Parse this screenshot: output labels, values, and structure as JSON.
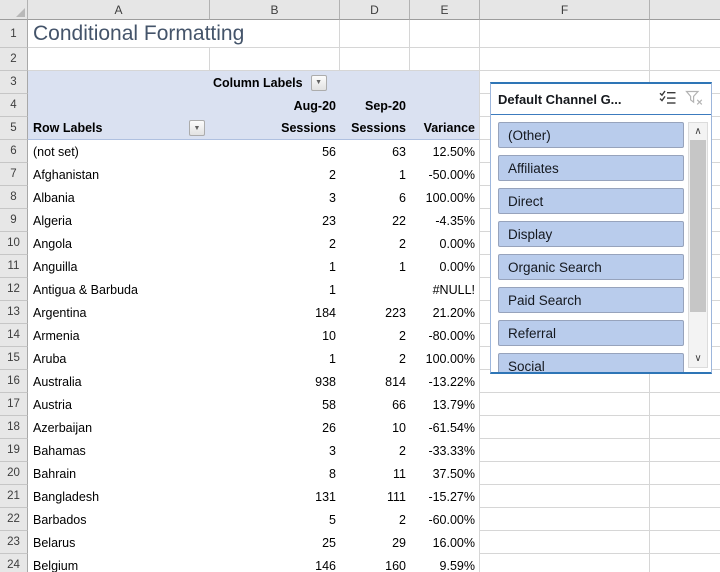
{
  "sheet": {
    "title": "Conditional Formatting",
    "column_headers": [
      "A",
      "B",
      "D",
      "E",
      "F",
      ""
    ],
    "row_numbers": [
      "1",
      "2",
      "3",
      "4",
      "5",
      "6",
      "7",
      "8",
      "9",
      "10",
      "11",
      "12",
      "13",
      "14",
      "15",
      "16",
      "17",
      "18",
      "19",
      "20",
      "21",
      "22",
      "23",
      "24"
    ]
  },
  "pivot": {
    "column_labels": "Column Labels",
    "row_labels": "Row Labels",
    "month_headers": [
      "Aug-20",
      "Sep-20"
    ],
    "value_headers": [
      "Sessions",
      "Sessions",
      "Variance"
    ],
    "rows": [
      {
        "country": "(not set)",
        "aug": "56",
        "sep": "63",
        "variance": "12.50%"
      },
      {
        "country": "Afghanistan",
        "aug": "2",
        "sep": "1",
        "variance": "-50.00%"
      },
      {
        "country": "Albania",
        "aug": "3",
        "sep": "6",
        "variance": "100.00%"
      },
      {
        "country": "Algeria",
        "aug": "23",
        "sep": "22",
        "variance": "-4.35%"
      },
      {
        "country": "Angola",
        "aug": "2",
        "sep": "2",
        "variance": "0.00%"
      },
      {
        "country": "Anguilla",
        "aug": "1",
        "sep": "1",
        "variance": "0.00%"
      },
      {
        "country": "Antigua & Barbuda",
        "aug": "1",
        "sep": "",
        "variance": "#NULL!"
      },
      {
        "country": "Argentina",
        "aug": "184",
        "sep": "223",
        "variance": "21.20%"
      },
      {
        "country": "Armenia",
        "aug": "10",
        "sep": "2",
        "variance": "-80.00%"
      },
      {
        "country": "Aruba",
        "aug": "1",
        "sep": "2",
        "variance": "100.00%"
      },
      {
        "country": "Australia",
        "aug": "938",
        "sep": "814",
        "variance": "-13.22%"
      },
      {
        "country": "Austria",
        "aug": "58",
        "sep": "66",
        "variance": "13.79%"
      },
      {
        "country": "Azerbaijan",
        "aug": "26",
        "sep": "10",
        "variance": "-61.54%"
      },
      {
        "country": "Bahamas",
        "aug": "3",
        "sep": "2",
        "variance": "-33.33%"
      },
      {
        "country": "Bahrain",
        "aug": "8",
        "sep": "11",
        "variance": "37.50%"
      },
      {
        "country": "Bangladesh",
        "aug": "131",
        "sep": "111",
        "variance": "-15.27%"
      },
      {
        "country": "Barbados",
        "aug": "5",
        "sep": "2",
        "variance": "-60.00%"
      },
      {
        "country": "Belarus",
        "aug": "25",
        "sep": "29",
        "variance": "16.00%"
      },
      {
        "country": "Belgium",
        "aug": "146",
        "sep": "160",
        "variance": "9.59%"
      }
    ]
  },
  "slicer": {
    "title": "Default Channel G...",
    "items": [
      "(Other)",
      "Affiliates",
      "Direct",
      "Display",
      "Organic Search",
      "Paid Search",
      "Referral",
      "Social"
    ]
  },
  "colors": {
    "pivot_header_bg": "#DAE1F1",
    "slicer_item_bg": "#B9CCEC",
    "slicer_accent": "#2E75B6",
    "title_color": "#44546A"
  }
}
